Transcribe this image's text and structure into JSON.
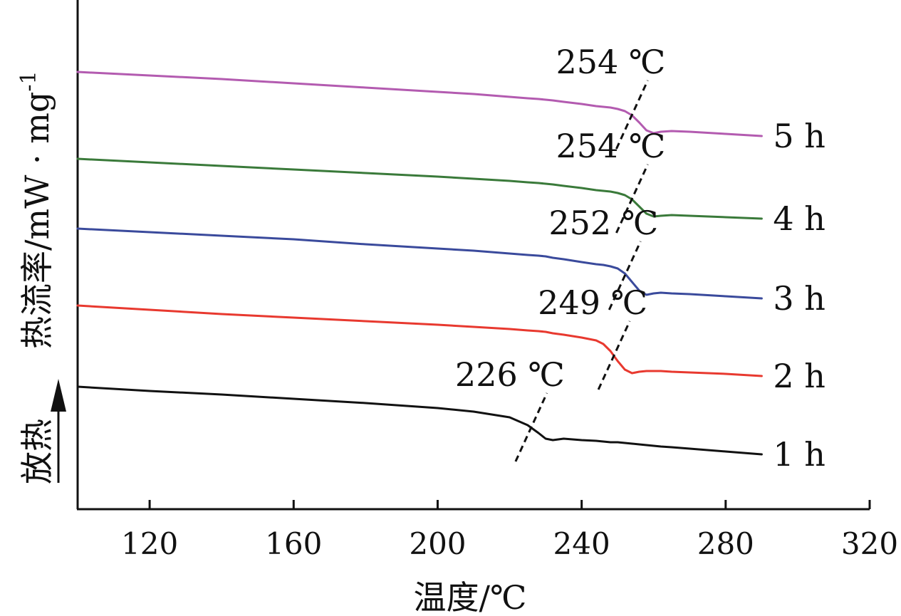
{
  "chart_data": {
    "type": "line",
    "xlabel": "温度/℃",
    "ylabel": "热流率/mW · mg",
    "ylabel_superscript": "-1",
    "exo_label": "放热",
    "xlim": [
      100,
      320
    ],
    "xticks": [
      120,
      160,
      200,
      240,
      280,
      320
    ],
    "x": [
      100,
      120,
      140,
      160,
      180,
      200,
      210,
      220,
      225,
      228,
      230,
      232,
      235,
      240,
      244,
      246,
      248,
      250,
      252,
      254,
      256,
      258,
      260,
      262,
      265,
      270,
      280,
      290
    ],
    "series": [
      {
        "name": "1 h",
        "color": "#111111",
        "values": [
          8.6,
          8.3,
          8.05,
          7.75,
          7.45,
          7.1,
          6.85,
          6.45,
          5.9,
          5.35,
          4.95,
          4.85,
          4.95,
          4.85,
          4.8,
          4.75,
          4.7,
          4.7,
          4.65,
          4.6,
          4.55,
          4.5,
          4.45,
          4.4,
          4.35,
          4.25,
          4.05,
          3.85
        ],
        "transition": {
          "label": "226 ℃",
          "temp": 226,
          "y": 5.75
        }
      },
      {
        "name": "2 h",
        "color": "#e8392f",
        "values": [
          14.3,
          14.0,
          13.7,
          13.45,
          13.2,
          12.95,
          12.8,
          12.65,
          12.55,
          12.5,
          12.45,
          12.35,
          12.25,
          12.05,
          11.85,
          11.6,
          11.1,
          10.4,
          9.8,
          9.55,
          9.65,
          9.7,
          9.7,
          9.7,
          9.65,
          9.6,
          9.5,
          9.35
        ],
        "transition": {
          "label": "249 ℃",
          "temp": 249,
          "y": 10.8
        }
      },
      {
        "name": "3 h",
        "color": "#3a4a9c",
        "values": [
          19.7,
          19.45,
          19.2,
          18.95,
          18.6,
          18.3,
          18.15,
          17.95,
          17.85,
          17.8,
          17.75,
          17.65,
          17.55,
          17.35,
          17.2,
          17.15,
          17.05,
          16.9,
          16.55,
          15.95,
          15.35,
          15.05,
          15.15,
          15.2,
          15.15,
          15.1,
          14.95,
          14.8
        ],
        "transition": {
          "label": "252 ℃",
          "temp": 252,
          "y": 16.4
        }
      },
      {
        "name": "4 h",
        "color": "#3a7a3a",
        "values": [
          24.6,
          24.35,
          24.1,
          23.85,
          23.6,
          23.35,
          23.2,
          23.05,
          22.95,
          22.9,
          22.85,
          22.8,
          22.7,
          22.55,
          22.4,
          22.35,
          22.3,
          22.2,
          22.05,
          21.75,
          21.25,
          20.75,
          20.55,
          20.6,
          20.65,
          20.6,
          20.5,
          20.4
        ],
        "transition": {
          "label": "254 ℃",
          "temp": 254,
          "y": 21.8
        }
      },
      {
        "name": "5 h",
        "color": "#b35bb0",
        "values": [
          30.7,
          30.45,
          30.2,
          29.9,
          29.6,
          29.3,
          29.15,
          28.95,
          28.85,
          28.8,
          28.75,
          28.7,
          28.6,
          28.45,
          28.3,
          28.25,
          28.2,
          28.1,
          27.95,
          27.65,
          27.15,
          26.6,
          26.4,
          26.5,
          26.55,
          26.5,
          26.35,
          26.2
        ],
        "transition": {
          "label": "254 ℃",
          "temp": 254,
          "y": 27.7
        }
      }
    ]
  }
}
